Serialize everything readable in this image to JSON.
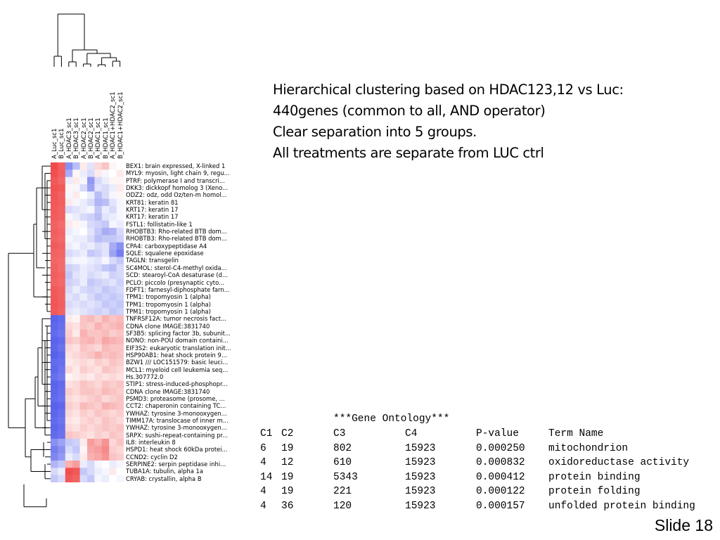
{
  "samples": [
    "A_Luc_sc1",
    "B_Luc_sc1",
    "A_HDAC3_sc1",
    "B_HDAC3_sc1",
    "A_HDAC2_sc1",
    "B_HDAC2_sc1",
    "A_HDAC1_sc1",
    "B_HDAC1_sc1",
    "A_HDAC1+HDAC2_sc1",
    "B_HDAC1+HDAC2_sc1"
  ],
  "genes": [
    "BEX1: brain expressed, X-linked 1",
    "MYL9: myosin, light chain 9, regu...",
    "PTRF: polymerase I and transcri...",
    "DKK3: dickkopf homolog 3 (Xeno...",
    "ODZ2: odz, odd Oz/ten-m homol...",
    "KRT81: keratin 81",
    "KRT17: keratin 17",
    "KRT17: keratin 17",
    "FSTL1: follistatin-like 1",
    "RHOBTB3: Rho-related BTB dom...",
    "RHOBTB3: Rho-related BTB dom...",
    "CPA4: carboxypeptidase A4",
    "SQLE: squalene epoxidase",
    "TAGLN: transgelin",
    "SC4MOL: sterol-C4-methyl oxida...",
    "SCD: stearoyl-CoA desaturase (d...",
    "PCLO: piccolo (presynaptic cyto...",
    "FDFT1: farnesyl-diphosphate farn...",
    "TPM1: tropomyosin 1 (alpha)",
    "TPM1: tropomyosin 1 (alpha)",
    "TPM1: tropomyosin 1 (alpha)",
    "TNFRSF12A: tumor necrosis fact...",
    "CDNA clone IMAGE:3831740",
    "SF3B5: splicing factor 3b, subunit...",
    "NONO: non-POU domain containi...",
    "EIF3S2: eukaryotic translation init...",
    "HSP90AB1: heat shock protein 9...",
    "BZW1 /// LOC151579: basic leuci...",
    "MCL1: myeloid cell leukemia seq...",
    "Hs.307772.0",
    "STIP1: stress-induced-phosphopr...",
    "CDNA clone IMAGE:3831740",
    "PSMD3: proteasome (prosome, ...",
    "CCT2: chaperonin containing TC...",
    "YWHAZ: tyrosine 3-monooxygen...",
    "TIMM17A: translocase of inner m...",
    "YWHAZ: tyrosine 3-monooxygen...",
    "SRPX: sushi-repeat-containing pr...",
    "IL8: interleukin 8",
    "HSPD1: heat shock 60kDa protei...",
    "CCND2: cyclin D2",
    "SERPINE2: serpin peptidase inhi...",
    "TUBA1A: tubulin, alpha 1a",
    "CRYAB: crystallin, alpha B"
  ],
  "heatmap": {
    "matrix": [
      [
        0.92,
        0.8,
        -0.6,
        -0.35,
        0.1,
        -0.15,
        0.2,
        0.3,
        0.05,
        0.0
      ],
      [
        0.9,
        0.82,
        -0.45,
        0.05,
        -0.1,
        -0.2,
        0.1,
        -0.05,
        0.0,
        0.1
      ],
      [
        0.85,
        0.78,
        -0.1,
        0.1,
        -0.05,
        -0.55,
        -0.2,
        -0.1,
        0.05,
        0.05
      ],
      [
        0.88,
        0.85,
        0.05,
        -0.05,
        -0.2,
        -0.5,
        -0.15,
        -0.2,
        -0.1,
        0.1
      ],
      [
        0.86,
        0.8,
        -0.05,
        0.1,
        0.0,
        -0.1,
        -0.35,
        -0.2,
        -0.05,
        0.05
      ],
      [
        0.85,
        0.82,
        0.1,
        -0.05,
        -0.1,
        -0.2,
        -0.4,
        -0.35,
        -0.15,
        -0.05
      ],
      [
        0.84,
        0.8,
        -0.2,
        -0.15,
        -0.1,
        -0.05,
        -0.3,
        -0.1,
        -0.2,
        -0.05
      ],
      [
        0.83,
        0.8,
        -0.05,
        -0.1,
        -0.2,
        -0.25,
        -0.35,
        -0.15,
        -0.1,
        -0.05
      ],
      [
        0.8,
        0.75,
        0.1,
        0.05,
        -0.05,
        -0.2,
        -0.25,
        -0.3,
        -0.05,
        -0.1
      ],
      [
        0.82,
        0.78,
        -0.1,
        -0.05,
        0.0,
        -0.15,
        -0.3,
        -0.45,
        -0.4,
        -0.2
      ],
      [
        0.8,
        0.76,
        -0.05,
        -0.1,
        -0.1,
        -0.2,
        -0.35,
        -0.3,
        -0.3,
        -0.25
      ],
      [
        0.84,
        0.8,
        -0.1,
        -0.05,
        -0.15,
        -0.1,
        -0.2,
        -0.15,
        -0.45,
        -0.6
      ],
      [
        0.8,
        0.78,
        -0.2,
        -0.15,
        -0.1,
        -0.3,
        -0.25,
        -0.15,
        -0.5,
        -0.7
      ],
      [
        0.78,
        0.76,
        -0.1,
        -0.05,
        -0.05,
        -0.1,
        -0.15,
        -0.05,
        -0.2,
        -0.3
      ],
      [
        0.8,
        0.75,
        -0.25,
        -0.2,
        -0.1,
        -0.15,
        -0.2,
        -0.3,
        -0.35,
        -0.2
      ],
      [
        0.82,
        0.78,
        -0.3,
        -0.15,
        -0.1,
        -0.2,
        -0.15,
        -0.1,
        -0.25,
        -0.2
      ],
      [
        0.8,
        0.76,
        -0.25,
        -0.2,
        -0.1,
        -0.3,
        -0.25,
        -0.2,
        -0.15,
        -0.25
      ],
      [
        0.84,
        0.8,
        -0.2,
        -0.1,
        -0.2,
        -0.25,
        -0.2,
        -0.3,
        -0.25,
        -0.2
      ],
      [
        0.85,
        0.8,
        -0.15,
        -0.2,
        -0.1,
        -0.2,
        -0.3,
        -0.25,
        -0.3,
        -0.25
      ],
      [
        0.86,
        0.82,
        -0.2,
        -0.15,
        -0.2,
        -0.15,
        -0.2,
        -0.3,
        -0.25,
        -0.3
      ],
      [
        0.85,
        0.8,
        -0.15,
        -0.1,
        -0.15,
        -0.2,
        -0.25,
        -0.2,
        -0.3,
        -0.25
      ],
      [
        -0.85,
        -0.8,
        0.1,
        0.05,
        0.3,
        0.35,
        0.25,
        0.4,
        0.3,
        0.35
      ],
      [
        -0.82,
        -0.78,
        0.2,
        0.15,
        0.3,
        0.25,
        0.4,
        0.3,
        0.35,
        0.4
      ],
      [
        -0.8,
        -0.75,
        0.25,
        0.1,
        0.4,
        0.3,
        0.3,
        0.35,
        0.25,
        0.3
      ],
      [
        -0.84,
        -0.8,
        0.3,
        0.25,
        0.35,
        0.4,
        0.3,
        0.45,
        0.4,
        0.35
      ],
      [
        -0.82,
        -0.76,
        0.2,
        0.15,
        0.3,
        0.25,
        0.2,
        0.35,
        0.3,
        0.3
      ],
      [
        -0.86,
        -0.8,
        0.15,
        0.2,
        0.25,
        0.3,
        0.4,
        0.3,
        0.35,
        0.3
      ],
      [
        -0.8,
        -0.78,
        0.1,
        0.15,
        0.2,
        0.15,
        0.25,
        0.2,
        0.3,
        0.25
      ],
      [
        -0.82,
        -0.75,
        0.2,
        0.1,
        0.25,
        0.2,
        0.15,
        0.3,
        0.25,
        0.2
      ],
      [
        -0.78,
        -0.72,
        0.05,
        0.1,
        0.15,
        0.1,
        0.2,
        0.15,
        0.2,
        0.15
      ],
      [
        -0.84,
        -0.8,
        0.15,
        0.2,
        0.3,
        0.25,
        0.2,
        0.3,
        0.25,
        0.3
      ],
      [
        -0.82,
        -0.78,
        0.25,
        0.2,
        0.3,
        0.3,
        0.25,
        0.35,
        0.3,
        0.25
      ],
      [
        -0.8,
        -0.76,
        0.2,
        0.15,
        0.2,
        0.25,
        0.3,
        0.2,
        0.25,
        0.3
      ],
      [
        -0.85,
        -0.82,
        0.25,
        0.2,
        0.35,
        0.3,
        0.25,
        0.4,
        0.35,
        0.3
      ],
      [
        -0.82,
        -0.78,
        0.2,
        0.15,
        0.25,
        0.2,
        0.3,
        0.25,
        0.2,
        0.25
      ],
      [
        -0.8,
        -0.75,
        0.15,
        0.1,
        0.2,
        0.25,
        0.2,
        0.3,
        0.25,
        0.2
      ],
      [
        -0.82,
        -0.78,
        0.2,
        0.15,
        0.25,
        0.2,
        0.25,
        0.3,
        0.25,
        0.3
      ],
      [
        -0.8,
        -0.76,
        0.3,
        0.25,
        0.2,
        0.15,
        0.25,
        0.2,
        0.3,
        0.25
      ],
      [
        -0.6,
        -0.5,
        -0.3,
        -0.25,
        0.1,
        0.5,
        0.4,
        0.55,
        0.2,
        0.3
      ],
      [
        -0.7,
        -0.6,
        -0.2,
        -0.3,
        0.05,
        0.45,
        0.5,
        0.6,
        0.25,
        0.2
      ],
      [
        -0.65,
        -0.55,
        -0.1,
        -0.2,
        0.1,
        0.4,
        0.45,
        0.55,
        0.3,
        0.25
      ],
      [
        -0.4,
        -0.3,
        0.4,
        0.5,
        -0.1,
        -0.2,
        -0.05,
        0.0,
        -0.1,
        -0.05
      ],
      [
        -0.2,
        -0.1,
        0.9,
        0.85,
        -0.3,
        -0.2,
        -0.1,
        -0.05,
        0.1,
        0.0
      ],
      [
        -0.3,
        -0.2,
        0.85,
        0.8,
        -0.2,
        -0.3,
        -0.05,
        -0.1,
        0.0,
        -0.05
      ]
    ]
  },
  "notes": [
    "Hierarchical clustering based on HDAC123,12 vs Luc:",
    "440genes (common to all, AND operator)",
    "Clear separation into 5 groups.",
    "All treatments are separate from LUC ctrl"
  ],
  "go_table": {
    "title": "***Gene Ontology***",
    "headers": [
      "C1",
      "C2",
      "C3",
      "C4",
      "P-value",
      "Term Name"
    ],
    "rows": [
      [
        "6",
        "19",
        "802",
        "15923",
        "0.000250",
        "mitochondrion"
      ],
      [
        "4",
        "12",
        "610",
        "15923",
        "0.000832",
        "oxidoreductase activity"
      ],
      [
        "14",
        "19",
        "5343",
        "15923",
        "0.000412",
        "protein binding"
      ],
      [
        "4",
        "19",
        "221",
        "15923",
        "0.000122",
        "protein folding"
      ],
      [
        "4",
        "36",
        "120",
        "15923",
        "0.000157",
        "unfolded protein binding"
      ]
    ]
  },
  "slide_number": "Slide 18",
  "colors": {
    "high": "#ef3b3b",
    "low": "#3b46e8",
    "mid": "#ffffff",
    "line": "#000000"
  }
}
